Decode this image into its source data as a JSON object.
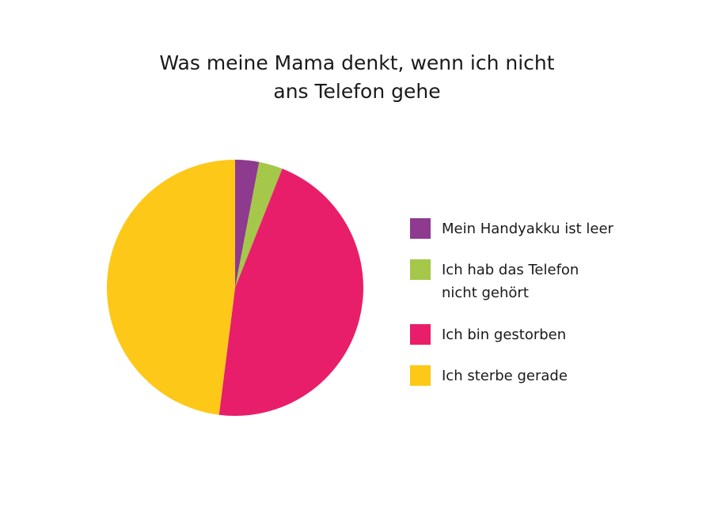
{
  "chart_data": {
    "type": "pie",
    "title_lines": [
      "Was meine Mama denkt, wenn ich nicht",
      "ans Telefon gehe"
    ],
    "legend_placement": "right",
    "slices": [
      {
        "label_lines": [
          "Mein Handyakku ist leer"
        ],
        "value": 3,
        "color": "#8e3a8f"
      },
      {
        "label_lines": [
          "Ich hab das Telefon",
          "nicht gehört"
        ],
        "value": 3,
        "color": "#a5c84a"
      },
      {
        "label_lines": [
          "Ich bin gestorben"
        ],
        "value": 46,
        "color": "#e81e6a"
      },
      {
        "label_lines": [
          "Ich sterbe gerade"
        ],
        "value": 48,
        "color": "#fdc818"
      }
    ]
  }
}
